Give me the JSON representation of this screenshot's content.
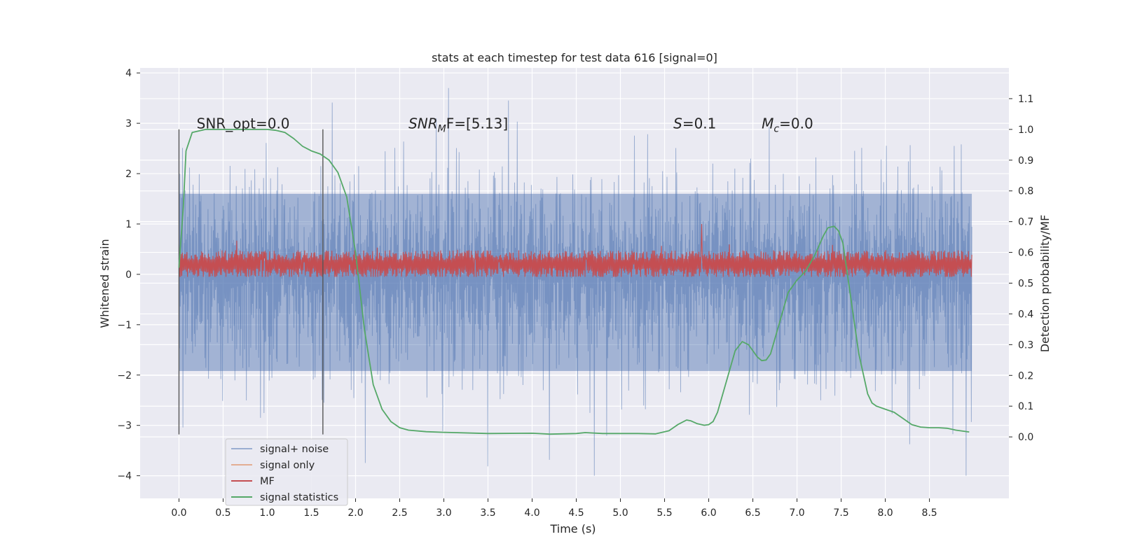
{
  "chart_data": {
    "type": "line",
    "title": "stats at each timestep for test data 616 [signal=0]",
    "xlabel": "Time (s)",
    "ylabel": "Whitened strain",
    "y2label": "Detection probability/MF",
    "xlim": [
      -0.44,
      9.4
    ],
    "ylim": [
      -4.45,
      4.1
    ],
    "y2lim": [
      -0.2,
      1.2
    ],
    "xticks": [
      "0.0",
      "0.5",
      "1.0",
      "1.5",
      "2.0",
      "2.5",
      "3.0",
      "3.5",
      "4.0",
      "4.5",
      "5.0",
      "5.5",
      "6.0",
      "6.5",
      "7.0",
      "7.5",
      "8.0",
      "8.5"
    ],
    "yticks": [
      "4",
      "3",
      "2",
      "1",
      "0",
      "−1",
      "−2",
      "−3",
      "−4"
    ],
    "y2ticks": [
      "0.0",
      "0.1",
      "0.2",
      "0.3",
      "0.4",
      "0.5",
      "0.6",
      "0.7",
      "0.8",
      "0.9",
      "1.0",
      "1.1"
    ],
    "grid": true,
    "legend_position": "lower-left",
    "annotations": [
      {
        "text": "SNR_opt=0.0",
        "x": 0.2,
        "y": 2.9
      },
      {
        "text_main": "SNR",
        "text_sub": "M",
        "text_rest": "F=[5.13]",
        "x": 2.6,
        "y": 2.9
      },
      {
        "text_main": "S",
        "text_sub": "",
        "text_rest": "=0.1",
        "x": 5.6,
        "y": 2.9
      },
      {
        "text_main": "M",
        "text_sub": "c",
        "text_rest": "=0.0",
        "x": 6.6,
        "y": 2.9
      }
    ],
    "vlines": [
      {
        "x": 0.0,
        "ymin": -3.18,
        "ymax": 2.88
      },
      {
        "x": 1.63,
        "ymin": -3.18,
        "ymax": 2.88
      }
    ],
    "series": [
      {
        "name": "signal+ noise",
        "color": "#4c72b0",
        "kind": "noise",
        "axis": "left",
        "x_range": [
          0,
          8.98
        ],
        "typical_abs": 1.6,
        "extreme_max": 3.7,
        "extreme_min": -4.0
      },
      {
        "name": "signal only",
        "color": "#dd8452",
        "kind": "flat",
        "axis": "left",
        "values": []
      },
      {
        "name": "MF",
        "color": "#c44e52",
        "kind": "band",
        "axis": "left",
        "x_range": [
          0,
          8.98
        ],
        "center": 0.2,
        "half_width": 0.2,
        "spike_x": 5.92,
        "spike_y": 1.0
      },
      {
        "name": "signal statistics",
        "color": "#55a868",
        "kind": "curve",
        "axis": "right",
        "x": [
          0.0,
          0.05,
          0.08,
          0.15,
          0.3,
          0.5,
          0.8,
          1.0,
          1.1,
          1.2,
          1.3,
          1.4,
          1.5,
          1.6,
          1.7,
          1.8,
          1.9,
          2.0,
          2.1,
          2.2,
          2.3,
          2.4,
          2.5,
          2.6,
          2.8,
          3.0,
          3.5,
          4.0,
          4.2,
          4.5,
          4.6,
          4.8,
          5.0,
          5.2,
          5.4,
          5.55,
          5.65,
          5.75,
          5.8,
          5.87,
          5.95,
          6.0,
          6.05,
          6.1,
          6.2,
          6.3,
          6.38,
          6.45,
          6.5,
          6.55,
          6.6,
          6.65,
          6.7,
          6.8,
          6.9,
          7.0,
          7.1,
          7.2,
          7.3,
          7.35,
          7.42,
          7.47,
          7.52,
          7.6,
          7.7,
          7.8,
          7.85,
          7.9,
          8.0,
          8.1,
          8.2,
          8.3,
          8.4,
          8.5,
          8.6,
          8.7,
          8.8,
          8.95
        ],
        "y": [
          0.55,
          0.75,
          0.93,
          0.99,
          1.0,
          1.0,
          1.0,
          1.0,
          0.997,
          0.99,
          0.97,
          0.945,
          0.93,
          0.92,
          0.9,
          0.86,
          0.78,
          0.6,
          0.35,
          0.17,
          0.09,
          0.05,
          0.03,
          0.022,
          0.017,
          0.015,
          0.011,
          0.012,
          0.009,
          0.011,
          0.014,
          0.011,
          0.011,
          0.011,
          0.01,
          0.02,
          0.04,
          0.055,
          0.052,
          0.043,
          0.038,
          0.04,
          0.05,
          0.08,
          0.18,
          0.28,
          0.31,
          0.3,
          0.28,
          0.26,
          0.248,
          0.25,
          0.27,
          0.37,
          0.47,
          0.51,
          0.54,
          0.59,
          0.655,
          0.68,
          0.685,
          0.67,
          0.63,
          0.47,
          0.27,
          0.14,
          0.11,
          0.1,
          0.09,
          0.08,
          0.06,
          0.04,
          0.032,
          0.03,
          0.03,
          0.028,
          0.022,
          0.016
        ]
      }
    ]
  }
}
